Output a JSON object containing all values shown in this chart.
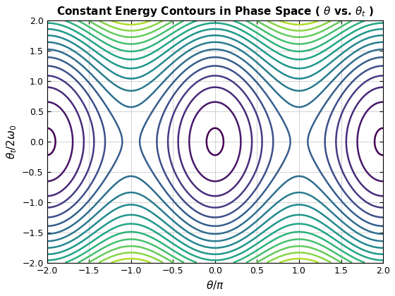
{
  "title": "Constant Energy Contours in Phase Space ( $\\theta$ vs. $\\theta_t$ )",
  "xlabel": "$\\theta/\\pi$",
  "ylabel": "$\\theta_t/2\\omega_0$",
  "xlim": [
    -2,
    2
  ],
  "ylim": [
    -2,
    2
  ],
  "xticks": [
    -2,
    -1.5,
    -1,
    -0.5,
    0,
    0.5,
    1,
    1.5,
    2
  ],
  "yticks": [
    -2,
    -1.5,
    -1,
    -0.5,
    0,
    0.5,
    1,
    1.5,
    2
  ],
  "grid": true,
  "figsize": [
    5.6,
    4.2
  ],
  "dpi": 100,
  "cmap": "viridis",
  "level_min": -0.95,
  "level_max": 5.5,
  "num_levels": 18,
  "linewidth": 1.8
}
